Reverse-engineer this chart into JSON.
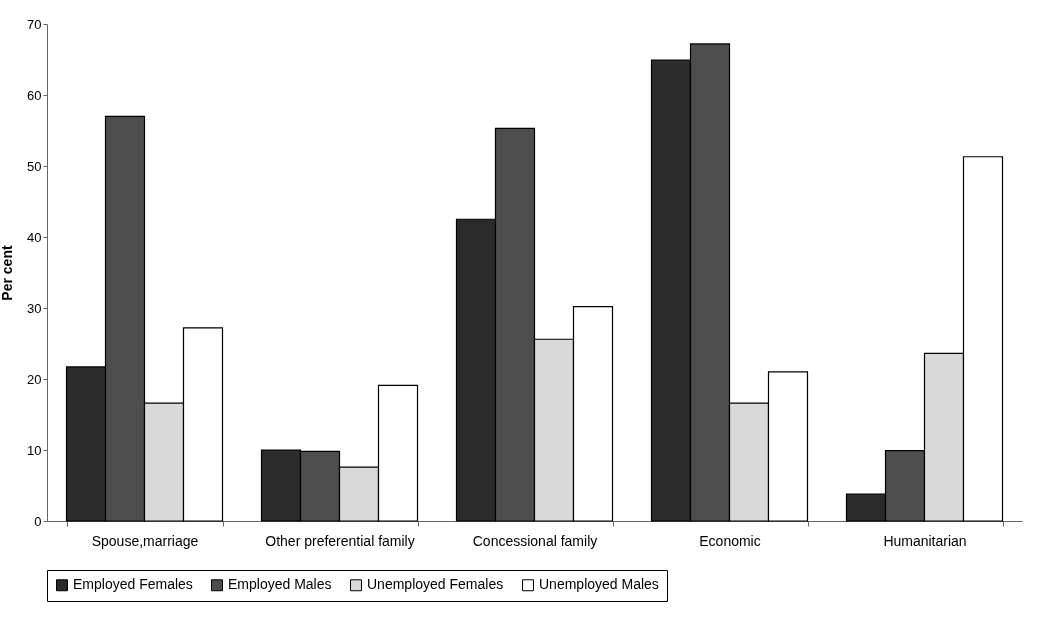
{
  "chart_data": {
    "type": "bar",
    "ylabel": "Per cent",
    "categories": [
      "Spouse,marriage",
      "Other preferential family",
      "Concessional family",
      "Economic",
      "Humanitarian"
    ],
    "series": [
      {
        "name": "Employed Females",
        "color": "#2b2b2b",
        "values": [
          21.7,
          10,
          42.5,
          64.9,
          3.8
        ]
      },
      {
        "name": "Employed Males",
        "color": "#4d4d4d",
        "values": [
          57,
          9.8,
          55.3,
          67.2,
          9.9
        ]
      },
      {
        "name": "Unemployed Females",
        "color": "#d9d9d9",
        "values": [
          16.6,
          7.6,
          25.6,
          16.6,
          23.6
        ]
      },
      {
        "name": "Unemployed Males",
        "color": "#ffffff",
        "values": [
          27.2,
          19.1,
          30.2,
          21,
          51.3
        ]
      }
    ],
    "ylim": [
      0,
      70
    ],
    "yticks": [
      0,
      10,
      20,
      30,
      40,
      50,
      60,
      70
    ],
    "grid": false,
    "legend": "bottom"
  }
}
